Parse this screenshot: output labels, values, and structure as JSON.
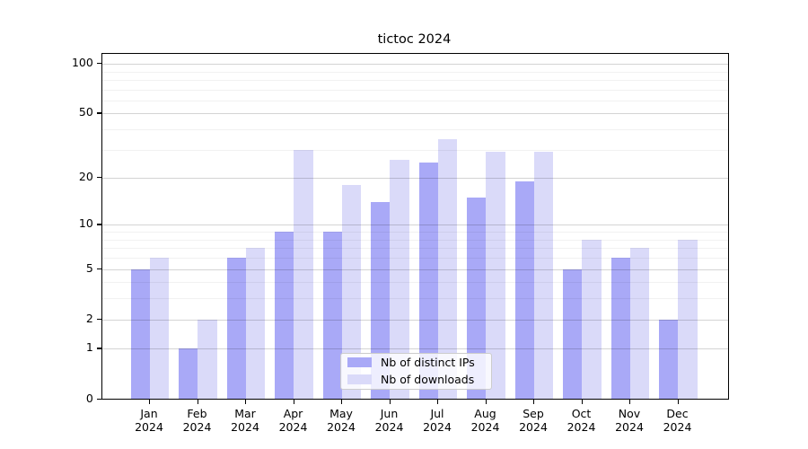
{
  "title": "tictoc 2024",
  "chart_data": {
    "type": "bar",
    "title": "tictoc 2024",
    "months": [
      "Jan",
      "Feb",
      "Mar",
      "Apr",
      "May",
      "Jun",
      "Jul",
      "Aug",
      "Sep",
      "Oct",
      "Nov",
      "Dec"
    ],
    "year": "2024",
    "categories": [
      "Jan 2024",
      "Feb 2024",
      "Mar 2024",
      "Apr 2024",
      "May 2024",
      "Jun 2024",
      "Jul 2024",
      "Aug 2024",
      "Sep 2024",
      "Oct 2024",
      "Nov 2024",
      "Dec 2024"
    ],
    "series": [
      {
        "name": "Nb of distinct IPs",
        "color": "#a9a9f7",
        "values": [
          5,
          1,
          6,
          9,
          9,
          14,
          25,
          15,
          19,
          5,
          6,
          2
        ]
      },
      {
        "name": "Nb of downloads",
        "color": "#dadaf9",
        "values": [
          6,
          2,
          7,
          30,
          18,
          26,
          35,
          29,
          29,
          8,
          7,
          8
        ]
      }
    ],
    "xlabel": "",
    "ylabel": "",
    "yscale": "log10(1+y)",
    "y_major_ticks": [
      0,
      1,
      2,
      5,
      10,
      20,
      50,
      100
    ],
    "y_minor_gridlines": [
      3,
      4,
      6,
      7,
      8,
      9,
      30,
      40,
      60,
      70,
      80,
      90
    ],
    "ylim": [
      0,
      113
    ],
    "grid": true,
    "legend_position": "lower center"
  }
}
